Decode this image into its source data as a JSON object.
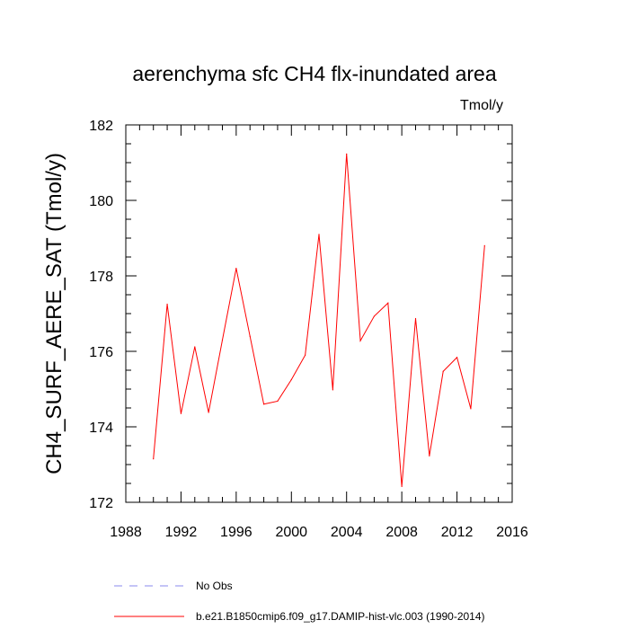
{
  "chart_data": {
    "type": "line",
    "title": "aerenchyma sfc CH4 flx-inundated area",
    "units": "Tmol/y",
    "ylabel": "CH4_SURF_AERE_SAT  (Tmol/y)",
    "xlabel": "",
    "xlim": [
      1988,
      2016
    ],
    "ylim": [
      172,
      182
    ],
    "x_ticks": [
      1988,
      1992,
      1996,
      2000,
      2004,
      2008,
      2012,
      2016
    ],
    "y_ticks": [
      172,
      174,
      176,
      178,
      180,
      182
    ],
    "grid": false,
    "legend_position": "bottom",
    "series": [
      {
        "name": "b.e21.B1850cmip6.f09_g17.DAMIP-hist-vlc.003 (1990-2014)",
        "color": "#ff0000",
        "style": "solid",
        "x": [
          1990,
          1991,
          1992,
          1993,
          1994,
          1995,
          1996,
          1997,
          1998,
          1999,
          2000,
          2001,
          2002,
          2003,
          2004,
          2005,
          2006,
          2007,
          2008,
          2009,
          2010,
          2011,
          2012,
          2013,
          2014
        ],
        "values": [
          173.15,
          177.25,
          174.35,
          176.12,
          174.38,
          176.3,
          178.2,
          176.4,
          174.6,
          174.68,
          175.25,
          175.9,
          179.1,
          174.98,
          181.23,
          176.28,
          176.93,
          177.28,
          172.42,
          176.87,
          173.23,
          175.47,
          175.84,
          174.48,
          178.8
        ]
      }
    ],
    "legend": [
      {
        "label": "No Obs",
        "color": "#8888ee",
        "style": "dashed"
      },
      {
        "label": "b.e21.B1850cmip6.f09_g17.DAMIP-hist-vlc.003 (1990-2014)",
        "color": "#ff0000",
        "style": "solid"
      }
    ]
  }
}
